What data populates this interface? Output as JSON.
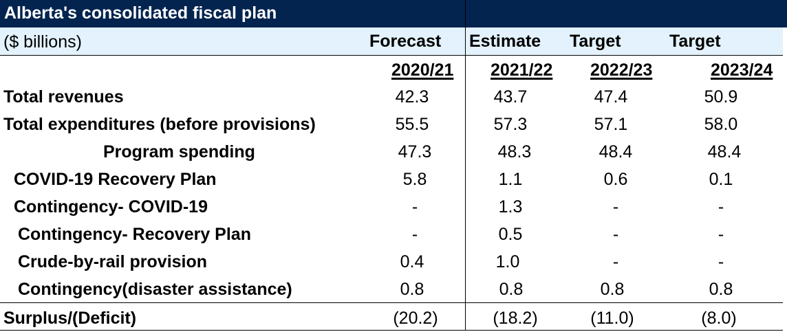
{
  "title": "Alberta's consolidated fiscal plan",
  "units": "($ billions)",
  "column_types": [
    "Forecast",
    "Estimate",
    "Target",
    "Target"
  ],
  "years": [
    "2020/21",
    "2021/22",
    "2022/23",
    "2023/24"
  ],
  "colors": {
    "title_bg": "#03244f",
    "subheader_bg": "#e3f2fc"
  },
  "rows": [
    {
      "label": "Total revenues",
      "values": [
        "42.3",
        "43.7",
        "47.4",
        "50.9"
      ]
    },
    {
      "label": "Total expenditures (before provisions)",
      "values": [
        "55.5",
        "57.3",
        "57.1",
        "58.0"
      ]
    },
    {
      "label": "Program spending",
      "values": [
        "47.3",
        "48.3",
        "48.4",
        "48.4"
      ]
    },
    {
      "label": "COVID-19 Recovery Plan",
      "values": [
        "5.8",
        "1.1",
        "0.6",
        "0.1"
      ]
    },
    {
      "label": "Contingency- COVID-19",
      "values": [
        "-",
        "1.3",
        "-",
        "-"
      ]
    },
    {
      "label": "Contingency- Recovery Plan",
      "values": [
        "-",
        "0.5",
        "-",
        "-"
      ]
    },
    {
      "label": "Crude-by-rail provision",
      "values": [
        "0.4",
        "1.0",
        "-",
        "-"
      ]
    },
    {
      "label": "Contingency(disaster assistance)",
      "values": [
        "0.8",
        "0.8",
        "0.8",
        "0.8"
      ]
    }
  ],
  "total": {
    "label": "Surplus/(Deficit)",
    "values": [
      "(20.2)",
      "(18.2)",
      "(11.0)",
      "(8.0)"
    ]
  }
}
